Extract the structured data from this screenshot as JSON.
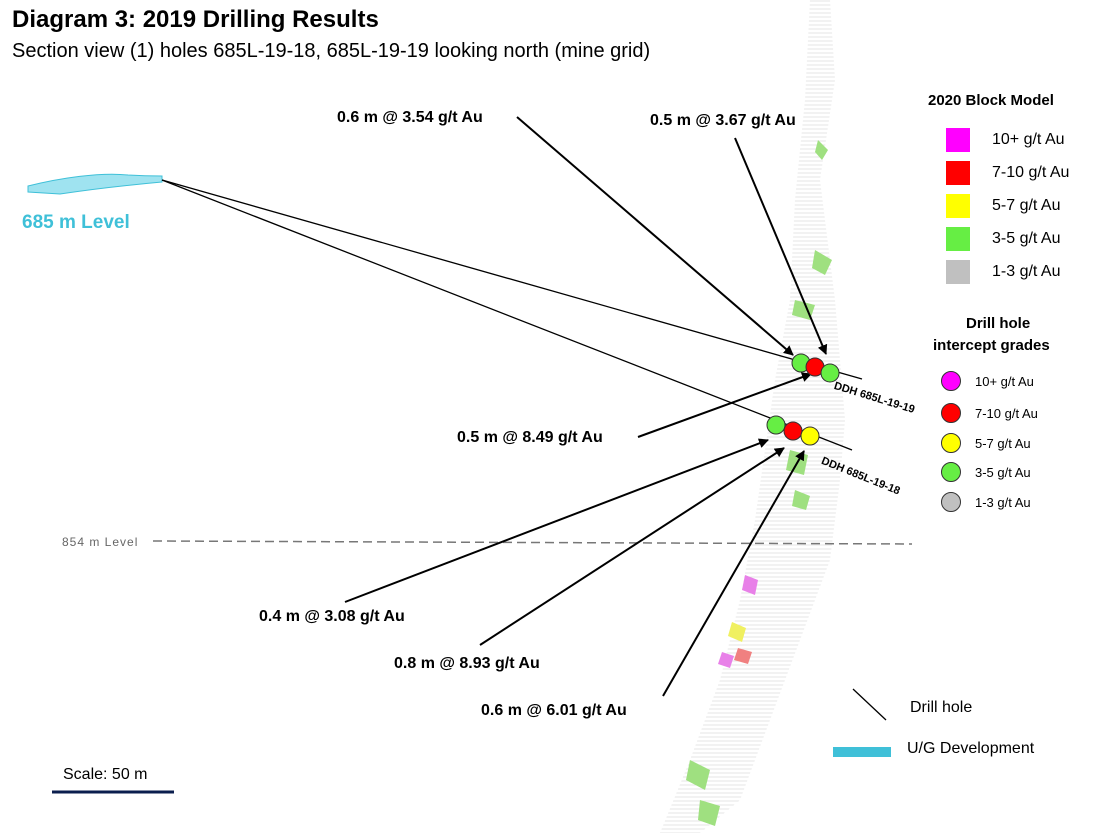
{
  "title": "Diagram 3: 2019 Drilling Results",
  "subtitle": "Section view (1) holes 685L-19-18, 685L-19-19 looking north (mine grid)",
  "levels": {
    "upper": "685 m Level",
    "lower": "854 m Level"
  },
  "callouts": [
    "0.6 m @ 3.54 g/t Au",
    "0.5 m @ 3.67 g/t Au",
    "0.5 m @ 8.49 g/t Au",
    "0.4 m @ 3.08 g/t Au",
    "0.8 m @ 8.93 g/t Au",
    "0.6 m @ 6.01 g/t Au"
  ],
  "drill_holes": {
    "upper": "DDH 685L-19-19",
    "lower": "DDH 685L-19-18"
  },
  "block_model_legend": {
    "title": "2020 Block Model",
    "items": [
      {
        "label": "10+ g/t Au",
        "color": "#ff00ff"
      },
      {
        "label": "7-10 g/t Au",
        "color": "#ff0000"
      },
      {
        "label": "5-7 g/t Au",
        "color": "#ffff00"
      },
      {
        "label": "3-5 g/t Au",
        "color": "#66ee44"
      },
      {
        "label": "1-3 g/t Au",
        "color": "#c0c0c0"
      }
    ]
  },
  "intercept_legend": {
    "title_line1": "Drill hole",
    "title_line2": "intercept grades",
    "items": [
      {
        "label": "10+ g/t Au",
        "color": "#ff00ff"
      },
      {
        "label": "7-10 g/t Au",
        "color": "#ff0000"
      },
      {
        "label": "5-7 g/t Au",
        "color": "#ffff00"
      },
      {
        "label": "3-5 g/t Au",
        "color": "#66ee44"
      },
      {
        "label": "1-3 g/t Au",
        "color": "#c0c0c0"
      }
    ]
  },
  "key": {
    "drill_hole": "Drill hole",
    "development": "U/G Development",
    "development_color": "#3fc0d8"
  },
  "scale": "Scale: 50 m"
}
